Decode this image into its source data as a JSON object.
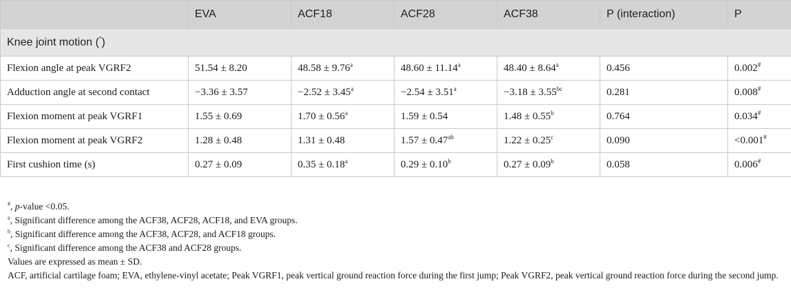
{
  "header": [
    "",
    "EVA",
    "ACF18",
    "ACF28",
    "ACF38",
    "P (interaction)",
    "P"
  ],
  "section": {
    "label": "Knee joint motion (",
    "sup": "°",
    "close": ")"
  },
  "rows": [
    {
      "label": "Flexion angle at peak VGRF2",
      "cells": [
        {
          "v": "51.54 ± 8.20",
          "s": ""
        },
        {
          "v": "48.58 ± 9.76",
          "s": "a"
        },
        {
          "v": "48.60 ± 11.14",
          "s": "a"
        },
        {
          "v": "48.40 ± 8.64",
          "s": "a"
        },
        {
          "v": "0.456",
          "s": ""
        },
        {
          "v": "0.002",
          "s": "#"
        }
      ]
    },
    {
      "label": "Adduction angle at second contact",
      "cells": [
        {
          "v": "−3.36 ± 3.57",
          "s": ""
        },
        {
          "v": "−2.52 ± 3.45",
          "s": "a"
        },
        {
          "v": "−2.54 ± 3.51",
          "s": "a"
        },
        {
          "v": "−3.18 ± 3.55",
          "s": "bc"
        },
        {
          "v": "0.281",
          "s": ""
        },
        {
          "v": "0.008",
          "s": "#"
        }
      ]
    },
    {
      "label": "Flexion moment at peak VGRF1",
      "cells": [
        {
          "v": "1.55 ± 0.69",
          "s": ""
        },
        {
          "v": "1.70 ± 0.56",
          "s": "a"
        },
        {
          "v": "1.59 ± 0.54",
          "s": ""
        },
        {
          "v": "1.48 ± 0.55",
          "s": "b"
        },
        {
          "v": "0.764",
          "s": ""
        },
        {
          "v": "0.034",
          "s": "#"
        }
      ]
    },
    {
      "label": "Flexion moment at peak VGRF2",
      "cells": [
        {
          "v": "1.28 ± 0.48",
          "s": ""
        },
        {
          "v": "1.31 ± 0.48",
          "s": ""
        },
        {
          "v": "1.57 ± 0.47",
          "s": "ab"
        },
        {
          "v": "1.22 ± 0.25",
          "s": "c"
        },
        {
          "v": "0.090",
          "s": ""
        },
        {
          "v": "<0.001",
          "s": "#"
        }
      ]
    },
    {
      "label": "First cushion time (s)",
      "cells": [
        {
          "v": "0.27 ± 0.09",
          "s": ""
        },
        {
          "v": "0.35 ± 0.18",
          "s": "a"
        },
        {
          "v": "0.29 ± 0.10",
          "s": "b"
        },
        {
          "v": "0.27 ± 0.09",
          "s": "b"
        },
        {
          "v": "0.058",
          "s": ""
        },
        {
          "v": "0.006",
          "s": "#"
        }
      ]
    }
  ],
  "footnotes": {
    "hash": {
      "sup": "#",
      "pre": ", ",
      "em": "p",
      "text": "-value <0.05."
    },
    "a": {
      "sup": "a",
      "text": ", Significant difference among the ACF38, ACF28, ACF18, and EVA groups."
    },
    "b": {
      "sup": "b",
      "text": ", Significant difference among the ACF38, ACF28, and ACF18 groups."
    },
    "c": {
      "sup": "c",
      "text": ", Significant difference among the ACF38 and ACF28 groups."
    },
    "values": "Values are expressed as mean ± SD.",
    "abbrev": "ACF, artificial cartilage foam; EVA, ethylene-vinyl acetate; Peak VGRF1, peak vertical ground reaction force during the first jump; Peak VGRF2, peak vertical ground reaction force during the second jump."
  }
}
